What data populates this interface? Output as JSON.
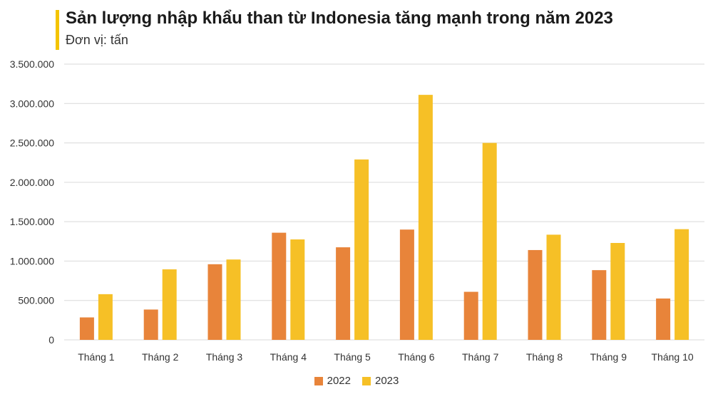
{
  "header": {
    "title": "Sản lượng nhập khẩu than từ Indonesia tăng mạnh trong năm 2023",
    "subtitle": "Đơn vị: tấn"
  },
  "colors": {
    "accent": "#F4C400",
    "s2022": "#E8843A",
    "s2023": "#F6C026",
    "grid": "#d9d9d9"
  },
  "chart_data": {
    "type": "bar",
    "title": "Sản lượng nhập khẩu than từ Indonesia tăng mạnh trong năm 2023",
    "subtitle": "Đơn vị: tấn",
    "categories": [
      "Tháng 1",
      "Tháng 2",
      "Tháng 3",
      "Tháng 4",
      "Tháng 5",
      "Tháng 6",
      "Tháng 7",
      "Tháng 8",
      "Tháng 9",
      "Tháng 10"
    ],
    "series": [
      {
        "name": "2022",
        "values": [
          285000,
          385000,
          960000,
          1360000,
          1175000,
          1400000,
          610000,
          1140000,
          885000,
          525000
        ]
      },
      {
        "name": "2023",
        "values": [
          580000,
          895000,
          1020000,
          1275000,
          2290000,
          3110000,
          2500000,
          1335000,
          1230000,
          1405000
        ]
      }
    ],
    "ylim": [
      0,
      3500000
    ],
    "yticks": [
      "0",
      "500.000",
      "1.000.000",
      "1.500.000",
      "2.000.000",
      "2.500.000",
      "3.000.000",
      "3.500.000"
    ],
    "grid": true,
    "legend": "bottom-center"
  }
}
